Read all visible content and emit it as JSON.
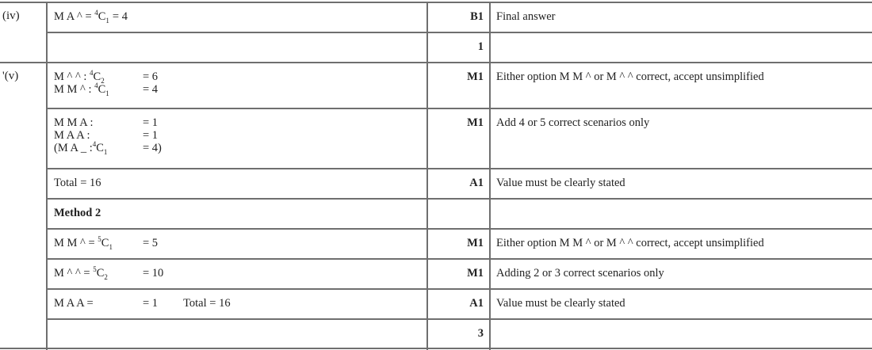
{
  "rows": [
    {
      "label": "(iv)",
      "lines": [
        {
          "pre": "M A ^ = ",
          "sup": "4",
          "base": "C",
          "sub": "1",
          "eq": "= 4",
          "inline": true
        }
      ],
      "mark": "B1",
      "comment": "Final answer"
    },
    {
      "label": "",
      "lines": [],
      "mark": "1",
      "comment": ""
    },
    {
      "label": "'(v)",
      "lines": [
        {
          "pre": "M ^ ^ : ",
          "sup": "4",
          "base": "C",
          "sub": "2",
          "eq": "= 6"
        },
        {
          "pre": "M M ^ : ",
          "sup": "4",
          "base": "C",
          "sub": "1",
          "eq": "= 4"
        }
      ],
      "mark": "M1",
      "comment": "Either option M M ^ or M ^ ^ correct, accept unsimplified"
    },
    {
      "label": "",
      "lines": [
        {
          "pre": "M M A :",
          "eq": "= 1"
        },
        {
          "pre": "M A A :",
          "eq": "= 1"
        },
        {
          "pre": "(M A _ :",
          "sup": "4",
          "base": "C",
          "sub": "1",
          "eq": "= 4)"
        }
      ],
      "mark": "M1",
      "comment": "Add 4 or 5 correct scenarios only"
    },
    {
      "label": "",
      "lines": [
        {
          "pre": "Total = 16",
          "inline": true
        }
      ],
      "mark": "A1",
      "comment": "Value must be clearly stated"
    },
    {
      "label": "",
      "lines": [
        {
          "pre": "Method 2",
          "inline": true,
          "bold": true
        }
      ],
      "mark": "",
      "comment": ""
    },
    {
      "label": "",
      "lines": [
        {
          "pre": "M M ^ = ",
          "sup": "5",
          "base": "C",
          "sub": "1",
          "eq": "= 5"
        }
      ],
      "mark": "M1",
      "comment": "Either option M M ^ or M ^ ^ correct, accept unsimplified"
    },
    {
      "label": "",
      "lines": [
        {
          "pre": "M ^ ^ = ",
          "sup": "5",
          "base": "C",
          "sub": "2",
          "eq": "= 10"
        }
      ],
      "mark": "M1",
      "comment": "Adding 2 or 3 correct scenarios only"
    },
    {
      "label": "",
      "lines": [
        {
          "pre": "M A A =",
          "eq": "= 1",
          "extra": "Total = 16"
        }
      ],
      "mark": "A1",
      "comment": "Value must be clearly stated"
    },
    {
      "label": "",
      "lines": [],
      "mark": "3",
      "comment": ""
    }
  ]
}
